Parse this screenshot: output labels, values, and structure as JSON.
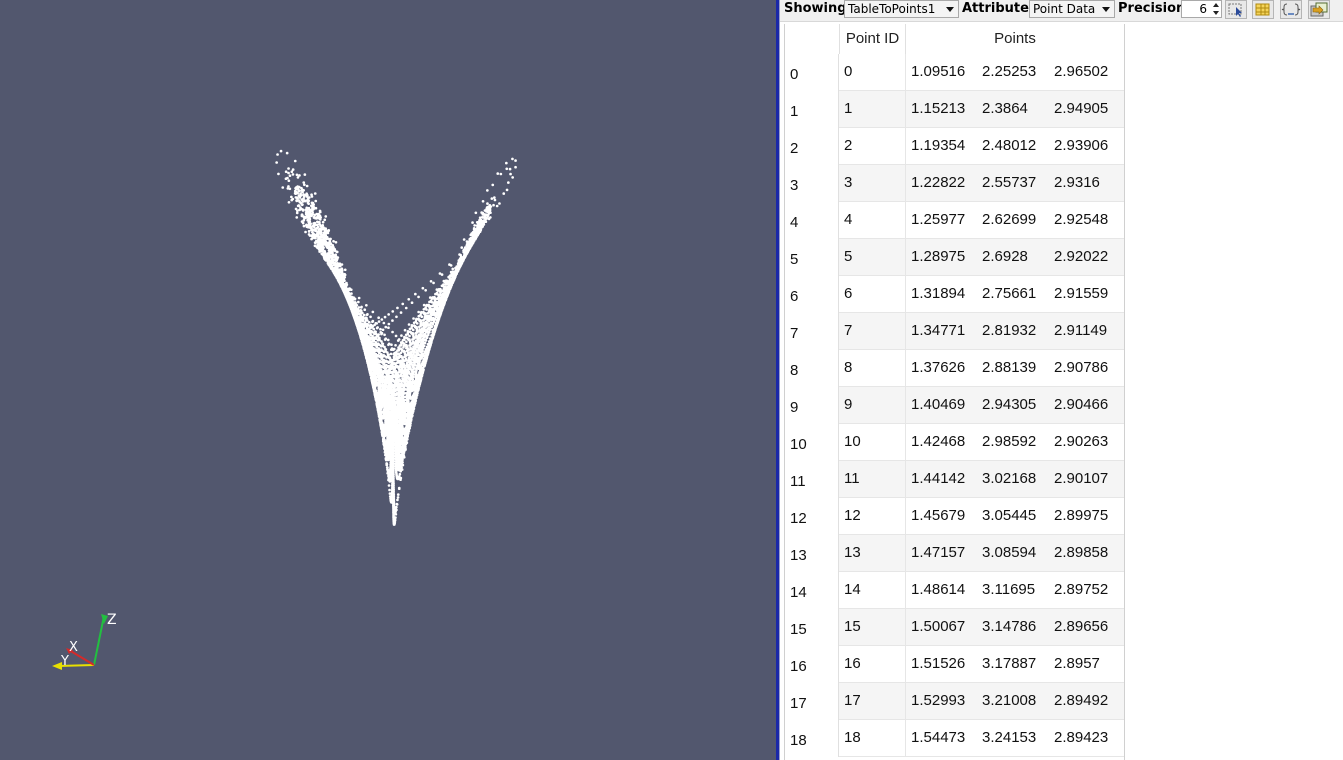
{
  "toolbar": {
    "showing_label": "Showing",
    "showing_value": "TableToPoints1",
    "attribute_label": "Attribute:",
    "attribute_value": "Point Data",
    "precision_label": "Precision:",
    "precision_value": "6",
    "buttons": [
      "select-icon",
      "table-grid-icon",
      "column-visibility-icon",
      "export-icon"
    ]
  },
  "axes": {
    "x": "X",
    "y": "Y",
    "z": "Z",
    "colors": {
      "x": "#d42a2a",
      "y": "#e8e000",
      "z": "#22c040"
    }
  },
  "viewport": {
    "background": "#52576e",
    "point_color": "#ffffff"
  },
  "table": {
    "headers": {
      "point_id": "Point ID",
      "points": "Points"
    },
    "rows": [
      {
        "idx": "0",
        "id": "0",
        "x": "1.09516",
        "y": "2.25253",
        "z": "2.96502"
      },
      {
        "idx": "1",
        "id": "1",
        "x": "1.15213",
        "y": "2.3864",
        "z": "2.94905"
      },
      {
        "idx": "2",
        "id": "2",
        "x": "1.19354",
        "y": "2.48012",
        "z": "2.93906"
      },
      {
        "idx": "3",
        "id": "3",
        "x": "1.22822",
        "y": "2.55737",
        "z": "2.9316"
      },
      {
        "idx": "4",
        "id": "4",
        "x": "1.25977",
        "y": "2.62699",
        "z": "2.92548"
      },
      {
        "idx": "5",
        "id": "5",
        "x": "1.28975",
        "y": "2.6928",
        "z": "2.92022"
      },
      {
        "idx": "6",
        "id": "6",
        "x": "1.31894",
        "y": "2.75661",
        "z": "2.91559"
      },
      {
        "idx": "7",
        "id": "7",
        "x": "1.34771",
        "y": "2.81932",
        "z": "2.91149"
      },
      {
        "idx": "8",
        "id": "8",
        "x": "1.37626",
        "y": "2.88139",
        "z": "2.90786"
      },
      {
        "idx": "9",
        "id": "9",
        "x": "1.40469",
        "y": "2.94305",
        "z": "2.90466"
      },
      {
        "idx": "10",
        "id": "10",
        "x": "1.42468",
        "y": "2.98592",
        "z": "2.90263"
      },
      {
        "idx": "11",
        "id": "11",
        "x": "1.44142",
        "y": "3.02168",
        "z": "2.90107"
      },
      {
        "idx": "12",
        "id": "12",
        "x": "1.45679",
        "y": "3.05445",
        "z": "2.89975"
      },
      {
        "idx": "13",
        "id": "13",
        "x": "1.47157",
        "y": "3.08594",
        "z": "2.89858"
      },
      {
        "idx": "14",
        "id": "14",
        "x": "1.48614",
        "y": "3.11695",
        "z": "2.89752"
      },
      {
        "idx": "15",
        "id": "15",
        "x": "1.50067",
        "y": "3.14786",
        "z": "2.89656"
      },
      {
        "idx": "16",
        "id": "16",
        "x": "1.51526",
        "y": "3.17887",
        "z": "2.8957"
      },
      {
        "idx": "17",
        "id": "17",
        "x": "1.52993",
        "y": "3.21008",
        "z": "2.89492"
      },
      {
        "idx": "18",
        "id": "18",
        "x": "1.54473",
        "y": "3.24153",
        "z": "2.89423"
      }
    ]
  }
}
